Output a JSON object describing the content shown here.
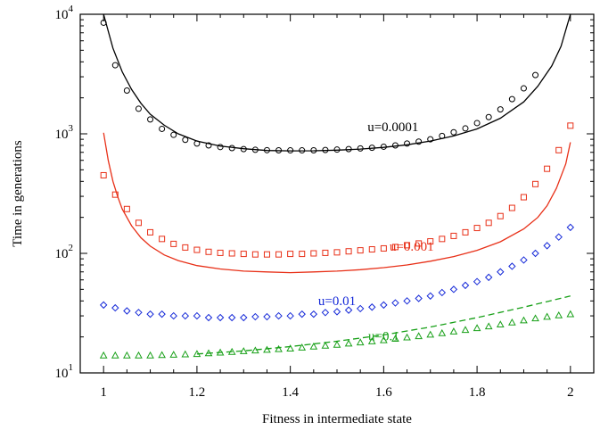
{
  "chart_data": {
    "type": "scatter",
    "xlabel": "Fitness in intermediate state",
    "ylabel": "Time in generations",
    "xlim": [
      0.95,
      2.05
    ],
    "ylim": [
      10,
      10000
    ],
    "yscale": "log",
    "x_ticks": [
      1,
      1.2,
      1.4,
      1.6,
      1.8,
      2
    ],
    "x_tick_labels": [
      "1",
      "1.2",
      "1.4",
      "1.6",
      "1.8",
      "2"
    ],
    "y_ticks": [
      10,
      100,
      1000,
      10000
    ],
    "y_tick_labels": [
      {
        "base": "10",
        "exp": "1"
      },
      {
        "base": "10",
        "exp": "2"
      },
      {
        "base": "10",
        "exp": "3"
      },
      {
        "base": "10",
        "exp": "4"
      }
    ],
    "grid": false,
    "series": [
      {
        "name": "u=0.0001",
        "color": "#000000",
        "marker": "circle",
        "line_style": "solid",
        "label_at": [
          1.62,
          1050
        ],
        "points": [
          [
            1.0,
            8500
          ],
          [
            1.025,
            3750
          ],
          [
            1.05,
            2300
          ],
          [
            1.075,
            1620
          ],
          [
            1.1,
            1320
          ],
          [
            1.125,
            1100
          ],
          [
            1.15,
            980
          ],
          [
            1.175,
            890
          ],
          [
            1.2,
            830
          ],
          [
            1.225,
            800
          ],
          [
            1.25,
            775
          ],
          [
            1.275,
            760
          ],
          [
            1.3,
            745
          ],
          [
            1.325,
            735
          ],
          [
            1.35,
            730
          ],
          [
            1.375,
            728
          ],
          [
            1.4,
            727
          ],
          [
            1.425,
            727
          ],
          [
            1.45,
            728
          ],
          [
            1.475,
            732
          ],
          [
            1.5,
            738
          ],
          [
            1.525,
            745
          ],
          [
            1.55,
            755
          ],
          [
            1.575,
            765
          ],
          [
            1.6,
            780
          ],
          [
            1.625,
            800
          ],
          [
            1.65,
            830
          ],
          [
            1.675,
            860
          ],
          [
            1.7,
            900
          ],
          [
            1.725,
            960
          ],
          [
            1.75,
            1030
          ],
          [
            1.775,
            1110
          ],
          [
            1.8,
            1230
          ],
          [
            1.825,
            1380
          ],
          [
            1.85,
            1600
          ],
          [
            1.875,
            1950
          ],
          [
            1.9,
            2400
          ],
          [
            1.925,
            3100
          ]
        ],
        "curve": [
          [
            1.0,
            10000
          ],
          [
            1.02,
            5200
          ],
          [
            1.04,
            3300
          ],
          [
            1.06,
            2350
          ],
          [
            1.08,
            1800
          ],
          [
            1.1,
            1460
          ],
          [
            1.13,
            1180
          ],
          [
            1.16,
            1000
          ],
          [
            1.2,
            870
          ],
          [
            1.25,
            790
          ],
          [
            1.3,
            750
          ],
          [
            1.35,
            725
          ],
          [
            1.4,
            720
          ],
          [
            1.45,
            722
          ],
          [
            1.5,
            730
          ],
          [
            1.55,
            745
          ],
          [
            1.6,
            770
          ],
          [
            1.65,
            810
          ],
          [
            1.7,
            870
          ],
          [
            1.75,
            960
          ],
          [
            1.8,
            1100
          ],
          [
            1.85,
            1350
          ],
          [
            1.9,
            1850
          ],
          [
            1.93,
            2500
          ],
          [
            1.96,
            3700
          ],
          [
            1.98,
            5400
          ],
          [
            2.0,
            10000
          ]
        ]
      },
      {
        "name": "u=0.001",
        "color": "#e83018",
        "marker": "square",
        "line_style": "solid",
        "label_at": [
          1.66,
          105
        ],
        "points": [
          [
            1.0,
            450
          ],
          [
            1.025,
            310
          ],
          [
            1.05,
            235
          ],
          [
            1.075,
            180
          ],
          [
            1.1,
            150
          ],
          [
            1.125,
            132
          ],
          [
            1.15,
            120
          ],
          [
            1.175,
            112
          ],
          [
            1.2,
            107
          ],
          [
            1.225,
            103
          ],
          [
            1.25,
            101
          ],
          [
            1.275,
            100
          ],
          [
            1.3,
            99
          ],
          [
            1.325,
            98
          ],
          [
            1.35,
            98
          ],
          [
            1.375,
            98
          ],
          [
            1.4,
            99
          ],
          [
            1.425,
            99
          ],
          [
            1.45,
            100
          ],
          [
            1.475,
            101
          ],
          [
            1.5,
            102
          ],
          [
            1.525,
            104
          ],
          [
            1.55,
            106
          ],
          [
            1.575,
            108
          ],
          [
            1.6,
            110
          ],
          [
            1.625,
            113
          ],
          [
            1.65,
            117
          ],
          [
            1.675,
            121
          ],
          [
            1.7,
            126
          ],
          [
            1.725,
            132
          ],
          [
            1.75,
            140
          ],
          [
            1.775,
            150
          ],
          [
            1.8,
            163
          ],
          [
            1.825,
            180
          ],
          [
            1.85,
            205
          ],
          [
            1.875,
            240
          ],
          [
            1.9,
            295
          ],
          [
            1.925,
            380
          ],
          [
            1.95,
            510
          ],
          [
            1.975,
            730
          ],
          [
            2.0,
            1170
          ]
        ],
        "curve": [
          [
            1.0,
            1020
          ],
          [
            1.01,
            600
          ],
          [
            1.02,
            400
          ],
          [
            1.03,
            300
          ],
          [
            1.04,
            235
          ],
          [
            1.06,
            170
          ],
          [
            1.08,
            135
          ],
          [
            1.1,
            115
          ],
          [
            1.13,
            97
          ],
          [
            1.16,
            87
          ],
          [
            1.2,
            79
          ],
          [
            1.25,
            74
          ],
          [
            1.3,
            71
          ],
          [
            1.35,
            70
          ],
          [
            1.4,
            69
          ],
          [
            1.45,
            70
          ],
          [
            1.5,
            71
          ],
          [
            1.55,
            73
          ],
          [
            1.6,
            76
          ],
          [
            1.65,
            80
          ],
          [
            1.7,
            86
          ],
          [
            1.75,
            94
          ],
          [
            1.8,
            106
          ],
          [
            1.85,
            125
          ],
          [
            1.9,
            160
          ],
          [
            1.93,
            200
          ],
          [
            1.95,
            250
          ],
          [
            1.97,
            350
          ],
          [
            1.99,
            560
          ],
          [
            2.0,
            850
          ]
        ]
      },
      {
        "name": "u=0.01",
        "color": "#1428d8",
        "marker": "diamond",
        "line_style": "none",
        "label_at": [
          1.5,
          37
        ],
        "points": [
          [
            1.0,
            37
          ],
          [
            1.025,
            35
          ],
          [
            1.05,
            33
          ],
          [
            1.075,
            32
          ],
          [
            1.1,
            31
          ],
          [
            1.125,
            31
          ],
          [
            1.15,
            30
          ],
          [
            1.175,
            30
          ],
          [
            1.2,
            30
          ],
          [
            1.225,
            29
          ],
          [
            1.25,
            29
          ],
          [
            1.275,
            29
          ],
          [
            1.3,
            29
          ],
          [
            1.325,
            29.5
          ],
          [
            1.35,
            29.5
          ],
          [
            1.375,
            30
          ],
          [
            1.4,
            30
          ],
          [
            1.425,
            31
          ],
          [
            1.45,
            31
          ],
          [
            1.475,
            32
          ],
          [
            1.5,
            32.5
          ],
          [
            1.525,
            33.5
          ],
          [
            1.55,
            34.5
          ],
          [
            1.575,
            35.5
          ],
          [
            1.6,
            37
          ],
          [
            1.625,
            38.5
          ],
          [
            1.65,
            40
          ],
          [
            1.675,
            42
          ],
          [
            1.7,
            44
          ],
          [
            1.725,
            47
          ],
          [
            1.75,
            50
          ],
          [
            1.775,
            54
          ],
          [
            1.8,
            58
          ],
          [
            1.825,
            63
          ],
          [
            1.85,
            70
          ],
          [
            1.875,
            78
          ],
          [
            1.9,
            88
          ],
          [
            1.925,
            100
          ],
          [
            1.95,
            116
          ],
          [
            1.975,
            137
          ],
          [
            2.0,
            165
          ]
        ],
        "curve": []
      },
      {
        "name": "u=0.1",
        "color": "#18a018",
        "marker": "triangle",
        "line_style": "dashed",
        "label_at": [
          1.6,
          18.8
        ],
        "points": [
          [
            1.0,
            14
          ],
          [
            1.025,
            14
          ],
          [
            1.05,
            14
          ],
          [
            1.075,
            14
          ],
          [
            1.1,
            14
          ],
          [
            1.125,
            14.1
          ],
          [
            1.15,
            14.2
          ],
          [
            1.175,
            14.3
          ],
          [
            1.2,
            14.4
          ],
          [
            1.225,
            14.6
          ],
          [
            1.25,
            14.8
          ],
          [
            1.275,
            15
          ],
          [
            1.3,
            15.2
          ],
          [
            1.325,
            15.4
          ],
          [
            1.35,
            15.6
          ],
          [
            1.375,
            15.8
          ],
          [
            1.4,
            16
          ],
          [
            1.425,
            16.3
          ],
          [
            1.45,
            16.6
          ],
          [
            1.475,
            16.9
          ],
          [
            1.5,
            17.2
          ],
          [
            1.525,
            17.6
          ],
          [
            1.55,
            18
          ],
          [
            1.575,
            18.4
          ],
          [
            1.6,
            18.8
          ],
          [
            1.625,
            19.3
          ],
          [
            1.65,
            19.8
          ],
          [
            1.675,
            20.3
          ],
          [
            1.7,
            20.9
          ],
          [
            1.725,
            21.5
          ],
          [
            1.75,
            22.2
          ],
          [
            1.775,
            22.9
          ],
          [
            1.8,
            23.7
          ],
          [
            1.825,
            24.5
          ],
          [
            1.85,
            25.4
          ],
          [
            1.875,
            26.4
          ],
          [
            1.9,
            27.5
          ],
          [
            1.925,
            28.6
          ],
          [
            1.95,
            29.5
          ],
          [
            1.975,
            30.3
          ],
          [
            2.0,
            31
          ]
        ],
        "curve": [
          [
            1.2,
            14.4
          ],
          [
            1.3,
            15.3
          ],
          [
            1.4,
            16.6
          ],
          [
            1.5,
            18.4
          ],
          [
            1.6,
            20.8
          ],
          [
            1.7,
            24.2
          ],
          [
            1.8,
            29
          ],
          [
            1.9,
            35.5
          ],
          [
            2.0,
            44
          ]
        ]
      }
    ]
  }
}
